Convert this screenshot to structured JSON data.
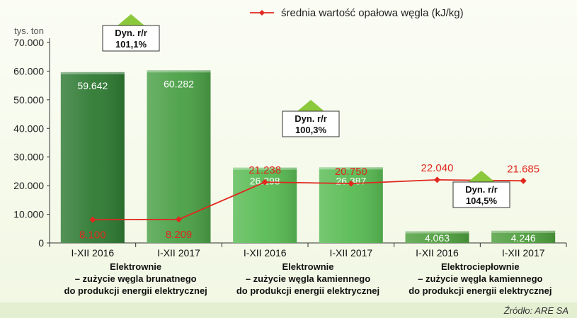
{
  "chart_data": {
    "type": "bar",
    "unit_label": "tys. ton",
    "ylim": [
      0,
      70000
    ],
    "y_ticks": [
      "0",
      "10.000",
      "20.000",
      "30.000",
      "40.000",
      "50.000",
      "60.000",
      "70.000"
    ],
    "categories": [
      "I-XII 2016",
      "I-XII 2017",
      "I-XII 2016",
      "I-XII 2017",
      "I-XII 2016",
      "I-XII 2017"
    ],
    "groups": [
      {
        "line1": "Elektrownie",
        "line2": "– zużycie węgla brunatnego",
        "line3": "do produkcji energii elektrycznej"
      },
      {
        "line1": "Elektrownie",
        "line2": "– zużycie węgla kamiennego",
        "line3": "do produkcji energii elektrycznej"
      },
      {
        "line1": "Elektrociepłownie",
        "line2": "– zużycie węgla kamiennego",
        "line3": "do produkcji energii elektrycznej"
      }
    ],
    "bars": {
      "values": [
        59642,
        60282,
        26298,
        26387,
        4063,
        4246
      ],
      "labels": [
        "59.642",
        "60.282",
        "26.298",
        "26.387",
        "4.063",
        "4.246"
      ],
      "colors": [
        "#2f7a33",
        "#4aa046",
        "#59bb53",
        "#59bb53",
        "#4e9e3d",
        "#4e9e3d"
      ]
    },
    "line_series": {
      "name": "średnia wartość opałowa węgla (kJ/kg)",
      "color": "#e0281e",
      "values": [
        8100,
        8209,
        21238,
        20750,
        22040,
        21685
      ],
      "labels": [
        "8.100",
        "8.209",
        "21.238",
        "20.750",
        "22.040",
        "21.685"
      ]
    },
    "annotations": [
      {
        "line1": "Dyn. r/r",
        "line2": "101,1%",
        "group": 0
      },
      {
        "line1": "Dyn. r/r",
        "line2": "100,3%",
        "group": 1
      },
      {
        "line1": "Dyn. r/r",
        "line2": "104,5%",
        "group": 2
      }
    ],
    "source": "Źródło: ARE SA"
  }
}
